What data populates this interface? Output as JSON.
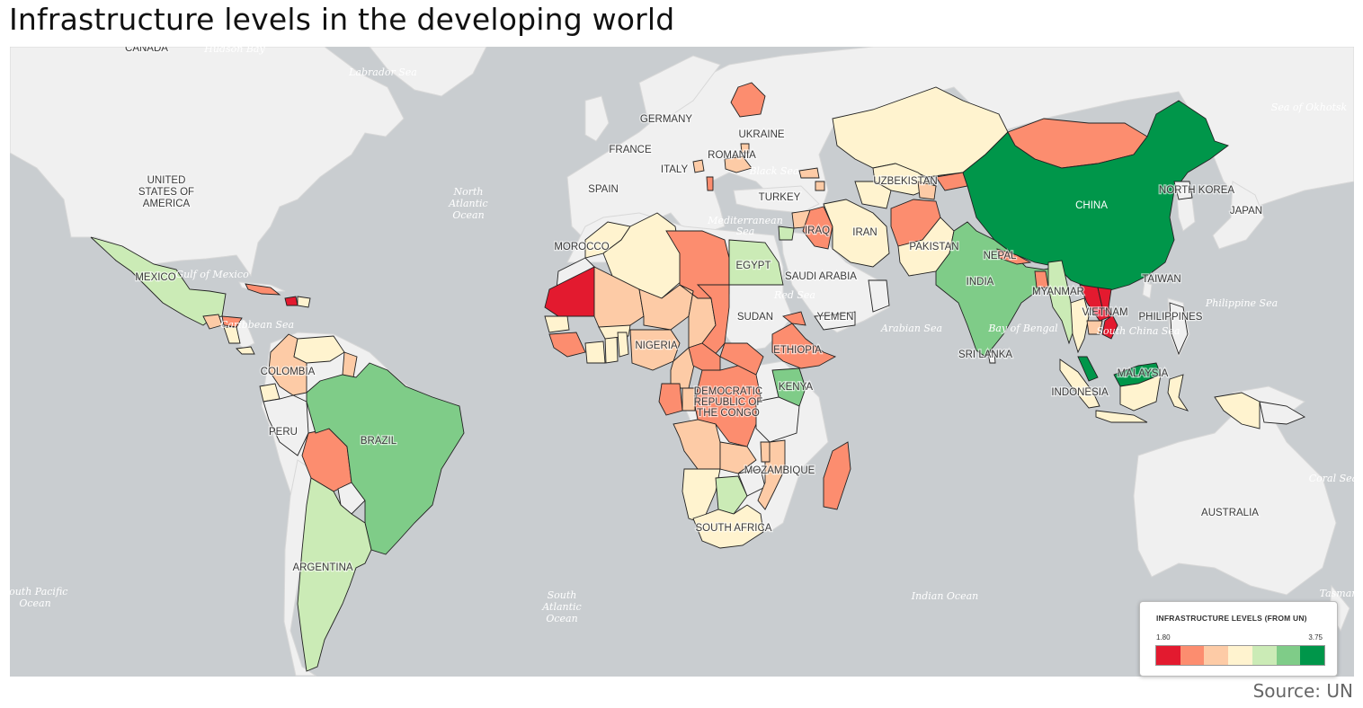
{
  "title": "Infrastructure levels in the developing world",
  "source": "Source: UN",
  "legend": {
    "title": "INFRASTRUCTURE LEVELS (FROM UN)",
    "min": "1.80",
    "max": "3.75",
    "colors": [
      "#e31a2f",
      "#fc8d6f",
      "#fdcba6",
      "#fff3cf",
      "#cbebb6",
      "#7fcc88",
      "#00964a"
    ]
  },
  "colors": {
    "ocean": "#c9cdd0",
    "land": "#f0f0f0"
  },
  "labels": {
    "canada": "CANADA",
    "usa": "UNITED\nSTATES OF\nAMERICA",
    "mexico": "MEXICO",
    "colombia": "COLOMBIA",
    "peru": "PERU",
    "brazil": "BRAZIL",
    "argentina": "ARGENTINA",
    "germany": "GERMANY",
    "france": "FRANCE",
    "spain": "SPAIN",
    "italy": "ITALY",
    "ukraine": "UKRAINE",
    "romania": "ROMANIA",
    "turkey": "TURKEY",
    "uzbekistan": "UZBEKISTAN",
    "iran": "IRAN",
    "iraq": "IRAQ",
    "pakistan": "PAKISTAN",
    "nepal": "NEPAL",
    "india": "INDIA",
    "srilanka": "SRI LANKA",
    "china": "CHINA",
    "northkorea": "NORTH KOREA",
    "japan": "JAPAN",
    "taiwan": "TAIWAN",
    "myanmar": "MYANMAR",
    "vietnam": "VIETNAM",
    "philippines": "PHILIPPINES",
    "malaysia": "MALAYSIA",
    "indonesia": "INDONESIA",
    "australia": "AUSTRALIA",
    "morocco": "MOROCCO",
    "egypt": "EGYPT",
    "saudi": "SAUDI ARABIA",
    "sudan": "SUDAN",
    "yemen": "YEMEN",
    "nigeria": "NIGERIA",
    "ethiopia": "ETHIOPIA",
    "kenya": "KENYA",
    "drc": "DEMOCRATIC\nREPUBLIC OF\nTHE CONGO",
    "mozambique": "MOZAMBIQUE",
    "southafrica": "SOUTH AFRICA"
  },
  "water_labels": {
    "hudson": "Hudson Bay",
    "labrador": "Labrador Sea",
    "north_atlantic": "North\nAtlantic\nOcean",
    "gulf_mexico": "Gulf of Mexico",
    "caribbean": "Caribbean Sea",
    "mediterranean": "Mediterranean\nSea",
    "black_sea": "Black Sea",
    "red_sea": "Red Sea",
    "arabian_sea": "Arabian Sea",
    "bay_bengal": "Bay of Bengal",
    "south_china": "South China Sea",
    "philippine": "Philippine Sea",
    "okhotsk": "Sea of Okhotsk",
    "coral": "Coral Sea",
    "tasman": "Tasman",
    "indian": "Indian Ocean",
    "south_atlantic": "South\nAtlantic\nOcean",
    "south_pacific": "South Pacific\nOcean"
  }
}
